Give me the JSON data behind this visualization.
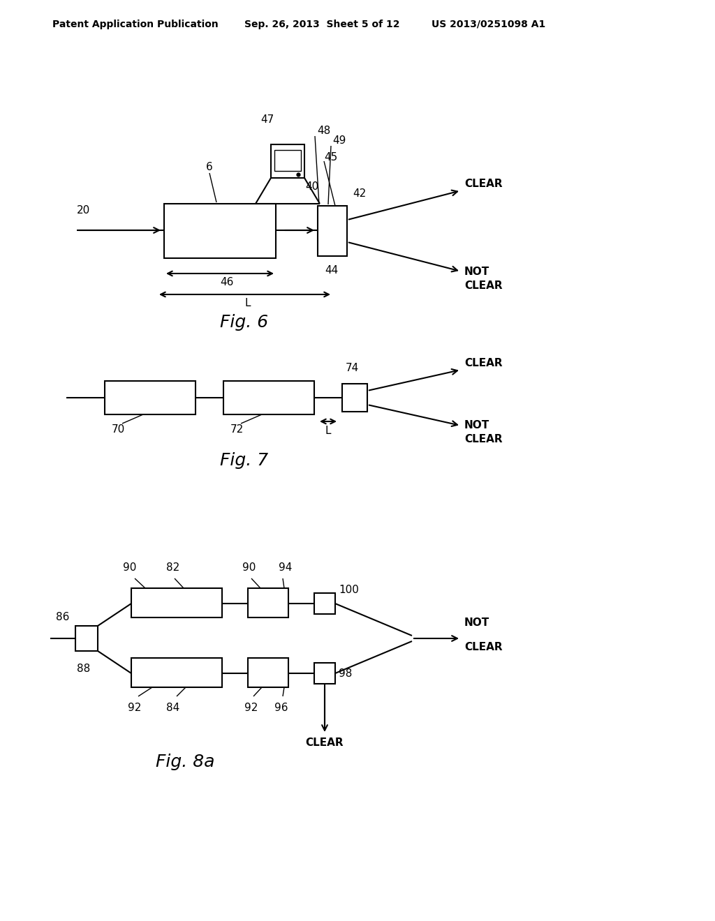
{
  "bg_color": "#ffffff",
  "header_left": "Patent Application Publication",
  "header_center": "Sep. 26, 2013  Sheet 5 of 12",
  "header_right": "US 2013/0251098 A1",
  "fig6_caption": "Fig. 6",
  "fig7_caption": "Fig. 7",
  "fig8a_caption": "Fig. 8a",
  "line_color": "#000000"
}
